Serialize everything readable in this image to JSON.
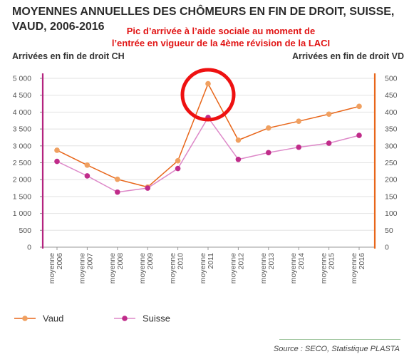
{
  "title": "MOYENNES ANNUELLES DES CHÔMEURS EN FIN DE DROIT, SUISSE, VAUD, 2006-2016",
  "annotation_line1": "Pic d’arrivée à l’aide sociale au moment de",
  "annotation_line2": "l’entrée en vigueur de la 4ème révision de la LACI",
  "source": "Source : SECO, Statistique PLASTA",
  "colors": {
    "vaud": "#f0a060",
    "vaud_line": "#e8661a",
    "suisse": "#c02c8a",
    "suisse_line": "#dd88c8",
    "left_axis": "#b4237f",
    "right_axis": "#e8661a",
    "highlight": "#ee1111"
  },
  "chart_data": {
    "type": "line",
    "categories": [
      "moyenne 2006",
      "moyenne 2007",
      "moyenne 2008",
      "moyenne 2009",
      "moyenne 2010",
      "moyenne 2011",
      "moyenne 2012",
      "moyenne 2013",
      "moyenne 2014",
      "moyenne 2015",
      "moyenne 2016"
    ],
    "ylabel_left": "Arrivées en fin de droit CH",
    "ylabel_right": "Arrivées en fin de droit VD",
    "ylim_left": [
      0,
      5000
    ],
    "ylim_right": [
      0,
      500
    ],
    "yticks_left": [
      "5 000",
      "4 500",
      "4 000",
      "3 500",
      "3 000",
      "2 500",
      "2 000",
      "1 500",
      "1 000",
      "500",
      "0"
    ],
    "yticks_right": [
      "500",
      "450",
      "400",
      "350",
      "300",
      "250",
      "200",
      "150",
      "100",
      "50",
      "0"
    ],
    "series": [
      {
        "name": "Vaud",
        "axis": "right",
        "values": [
          287,
          243,
          201,
          178,
          256,
          484,
          317,
          353,
          373,
          394,
          417
        ]
      },
      {
        "name": "Suisse",
        "axis": "left",
        "values": [
          2540,
          2110,
          1630,
          1750,
          2330,
          3840,
          2600,
          2800,
          2960,
          3080,
          3310
        ]
      }
    ],
    "highlight_category": "moyenne 2011",
    "grid": "horizontal",
    "legend": "bottom-left"
  }
}
